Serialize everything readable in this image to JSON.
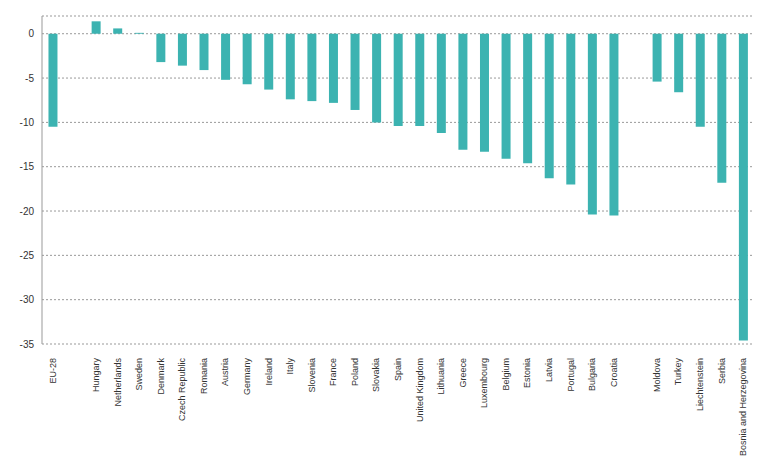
{
  "chart_data": {
    "type": "bar",
    "categories": [
      "EU-28",
      null,
      "Hungary",
      "Netherlands",
      "Sweden",
      "Denmark",
      "Czech Republic",
      "Romania",
      "Austria",
      "Germany",
      "Ireland",
      "Italy",
      "Slovenia",
      "France",
      "Poland",
      "Slovakia",
      "Spain",
      "United Kingdom",
      "Lithuania",
      "Greece",
      "Luxembourg",
      "Belgium",
      "Estonia",
      "Latvia",
      "Portugal",
      "Bulgaria",
      "Croatia",
      null,
      "Moldova",
      "Turkey",
      "Liechtenstein",
      "Serbia",
      "Bosnia and Herzegovina"
    ],
    "values": [
      -10.5,
      null,
      1.4,
      0.6,
      0.1,
      -3.2,
      -3.6,
      -4.1,
      -5.2,
      -5.7,
      -6.3,
      -7.4,
      -7.6,
      -7.8,
      -8.6,
      -10.0,
      -10.4,
      -10.4,
      -11.2,
      -13.1,
      -13.3,
      -14.1,
      -14.6,
      -16.3,
      -17.0,
      -20.4,
      -20.5,
      null,
      -5.4,
      -6.6,
      -10.5,
      -16.8,
      -34.6
    ],
    "color": "#3cb3b1",
    "ylim": [
      -35,
      2
    ],
    "yticks": [
      -35,
      -30,
      -25,
      -20,
      -15,
      -10,
      -5,
      0
    ],
    "grid": true
  }
}
